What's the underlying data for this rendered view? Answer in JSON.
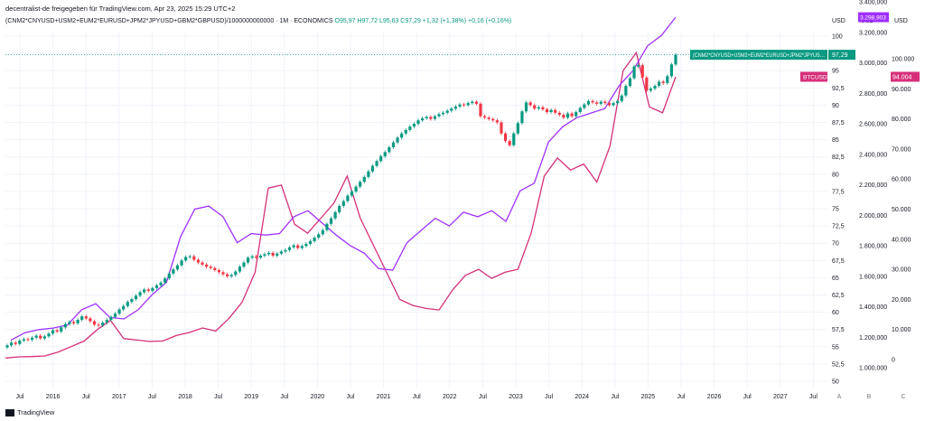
{
  "header": {
    "attribution": "decentralist-de freigegeben für TradingView.com, Apr 23, 2025 15:29 UTC+2"
  },
  "legend": {
    "symbol": "(CNM2*CNYUSD+USM2+EUM2*EURUSD+JPM2*JPYUSD+GBM2*GBPUSD)/1000000000000 · 1M · ECONOMICS",
    "ohlc": "O95,97 H97,72 L95,63 C97,29 +1,32 (+1,38%) +0,16 (+0,16%)"
  },
  "axis_heads": [
    "USD",
    "USD",
    "USD"
  ],
  "axis_letters": [
    "A",
    "B",
    "C"
  ],
  "labels": {
    "m2_tag": "(CNM2*CNYUSD+USM2+EUM2*EURUSD+JPM2*JPYUSD+GBM2*GBPUSD)/1000000000000 · 1M · ECONOMICS",
    "m2_price": "97,29",
    "btc_tag": "BTCUSD",
    "b_price": "3.298,903",
    "c_price": "94.004"
  },
  "footer": {
    "brand": "TradingView"
  },
  "colors": {
    "up": "#089981",
    "down": "#f23645",
    "btc": "#d62f7a",
    "b_series": "#a030ff",
    "grid": "#f0f3fa",
    "text": "#131722"
  },
  "chart_data": {
    "type": "candlestick",
    "x_ticks": [
      "Jul",
      "2016",
      "Jul",
      "2017",
      "Jul",
      "2018",
      "Jul",
      "2019",
      "Jul",
      "2020",
      "Jul",
      "2021",
      "Jul",
      "2022",
      "Jul",
      "2023",
      "Jul",
      "2024",
      "Jul",
      "2025",
      "Jul",
      "2026",
      "Jul",
      "2027",
      "Jul"
    ],
    "y_axis_a": {
      "ticks": [
        "100",
        "97,5",
        "95",
        "92,5",
        "90",
        "87,5",
        "85",
        "82,5",
        "80",
        "77,5",
        "75",
        "72,5",
        "70",
        "67,5",
        "65",
        "62,5",
        "60",
        "57,5",
        "55",
        "52,5",
        "50"
      ],
      "range": [
        50,
        100
      ]
    },
    "y_axis_b": {
      "ticks": [
        "3.400,000",
        "3.200,000",
        "3.000,000",
        "2.800,000",
        "2.600,000",
        "2.400,000",
        "2.200,000",
        "2.000,000",
        "1.800,000",
        "1.600,000",
        "1.400,000",
        "1.200,000",
        "1.000,000"
      ],
      "range": [
        1000000,
        3400000
      ]
    },
    "y_axis_c": {
      "ticks": [
        "100.000",
        "90.000",
        "80.000",
        "70.000",
        "60.000",
        "50.000",
        "40.000",
        "30.000",
        "20.000",
        "10.000",
        "0"
      ],
      "range": [
        0,
        100000
      ]
    },
    "m2_closes": [
      55.2,
      55.6,
      55.4,
      55.9,
      56.1,
      56.0,
      56.3,
      56.6,
      56.2,
      56.5,
      56.9,
      57.4,
      57.2,
      57.8,
      58.3,
      58.6,
      58.4,
      58.9,
      59.4,
      59.1,
      58.7,
      58.2,
      58.1,
      58.5,
      58.9,
      59.3,
      59.8,
      60.4,
      60.9,
      61.5,
      61.9,
      62.4,
      62.9,
      63.3,
      63.1,
      63.5,
      63.9,
      64.3,
      64.9,
      65.6,
      66.2,
      66.8,
      67.5,
      68.0,
      68.1,
      67.6,
      67.2,
      66.9,
      66.6,
      66.4,
      66.1,
      65.8,
      65.5,
      65.2,
      65.4,
      65.9,
      66.6,
      67.2,
      67.9,
      68.1,
      67.9,
      68.2,
      68.4,
      68.6,
      68.2,
      68.5,
      68.8,
      69.0,
      69.4,
      69.7,
      69.3,
      69.6,
      69.9,
      70.3,
      70.8,
      71.3,
      71.9,
      72.8,
      73.6,
      74.5,
      75.4,
      76.1,
      76.9,
      77.5,
      78.2,
      78.9,
      79.6,
      80.4,
      81.2,
      81.9,
      82.6,
      83.2,
      83.9,
      84.6,
      85.3,
      85.9,
      86.4,
      86.9,
      87.3,
      87.8,
      88.1,
      88.3,
      88.0,
      88.4,
      88.7,
      88.9,
      89.2,
      89.5,
      89.8,
      90.1,
      90.0,
      90.3,
      90.5,
      90.2,
      88.4,
      88.2,
      88.0,
      87.8,
      87.5,
      85.9,
      84.8,
      84.2,
      85.9,
      87.4,
      89.1,
      90.4,
      90.0,
      89.5,
      89.7,
      89.4,
      89.0,
      89.3,
      88.9,
      88.6,
      88.2,
      88.8,
      88.4,
      89.0,
      89.6,
      90.1,
      90.6,
      90.4,
      90.2,
      90.5,
      90.3,
      90.0,
      90.3,
      90.6,
      91.4,
      92.8,
      93.9,
      95.6,
      95.8,
      94.0,
      92.1,
      92.4,
      92.8,
      93.4,
      93.2,
      94.2,
      95.9,
      97.3
    ],
    "series_b_monthly_approx": [
      1180000,
      1230000,
      1250000,
      1260000,
      1280000,
      1380000,
      1420000,
      1330000,
      1320000,
      1380000,
      1480000,
      1560000,
      1860000,
      2040000,
      2060000,
      1990000,
      1820000,
      1880000,
      1870000,
      1880000,
      1990000,
      2030000,
      1950000,
      1870000,
      1800000,
      1750000,
      1650000,
      1640000,
      1820000,
      1900000,
      1980000,
      1930000,
      2020000,
      1990000,
      2030000,
      1960000,
      2160000,
      2210000,
      2480000,
      2580000,
      2640000,
      2670000,
      2700000,
      2850000,
      2950000,
      3110000,
      3180000,
      3298903
    ],
    "series_c_monthly_approx": [
      500,
      900,
      1000,
      1200,
      2500,
      4300,
      6200,
      10000,
      13000,
      7000,
      6500,
      6000,
      6200,
      8000,
      9000,
      10500,
      9500,
      13600,
      19000,
      29000,
      57000,
      58000,
      45000,
      42000,
      47000,
      52000,
      61000,
      47000,
      38000,
      29000,
      20000,
      18000,
      17000,
      16500,
      23000,
      28000,
      30000,
      27000,
      29000,
      30000,
      42000,
      61000,
      67000,
      63000,
      65000,
      59000,
      71000,
      96000,
      102000,
      84000,
      82000,
      94004
    ]
  }
}
